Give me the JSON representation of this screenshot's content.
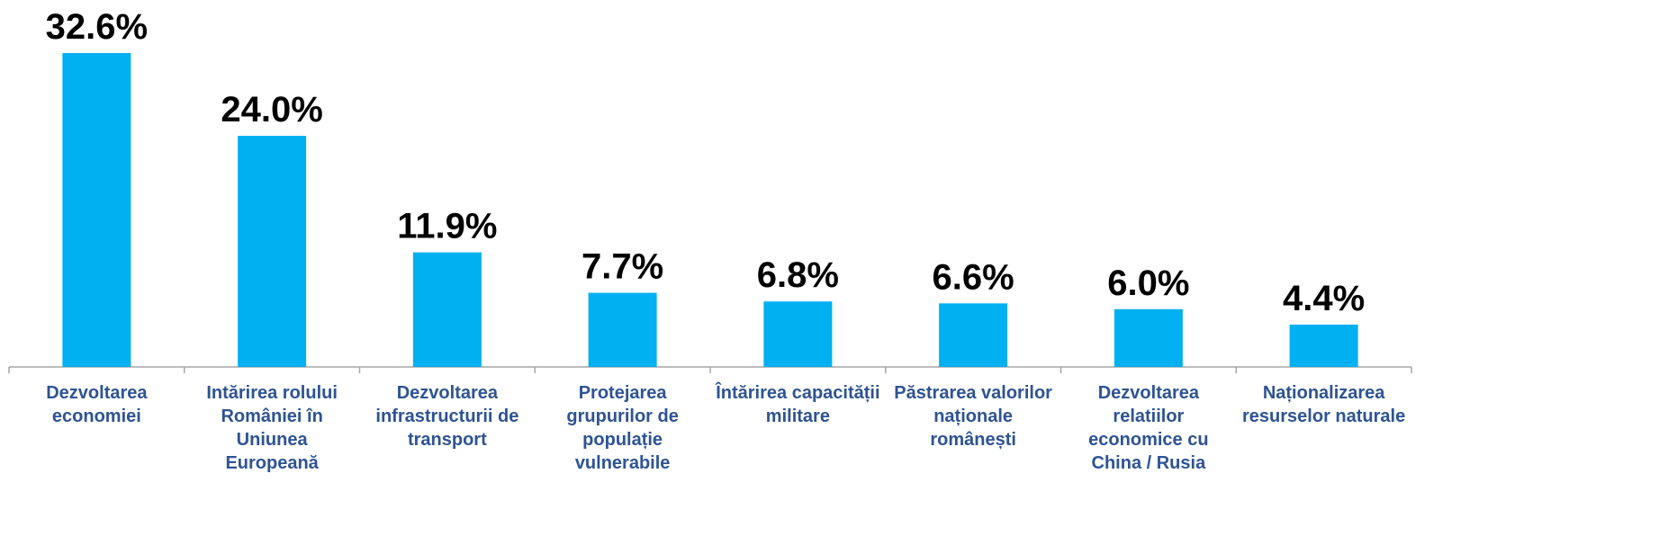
{
  "chart_data": {
    "type": "bar",
    "categories": [
      "Dezvoltarea economiei",
      "Intărirea rolului României în Uniunea Europeană",
      "Dezvoltarea infrastructurii de transport",
      "Protejarea grupurilor de populație vulnerabile",
      "Întărirea capacității militare",
      "Păstrarea valorilor naționale românești",
      "Dezvoltarea relatiilor economice cu China / Rusia",
      "Naționalizarea resurselor naturale"
    ],
    "values": [
      32.6,
      24.0,
      11.9,
      7.7,
      6.8,
      6.6,
      6.0,
      4.4
    ],
    "value_labels": [
      "32.6%",
      "24.0%",
      "11.9%",
      "7.7%",
      "6.8%",
      "6.6%",
      "6.0%",
      "4.4%"
    ],
    "color": "#00b0f0"
  }
}
